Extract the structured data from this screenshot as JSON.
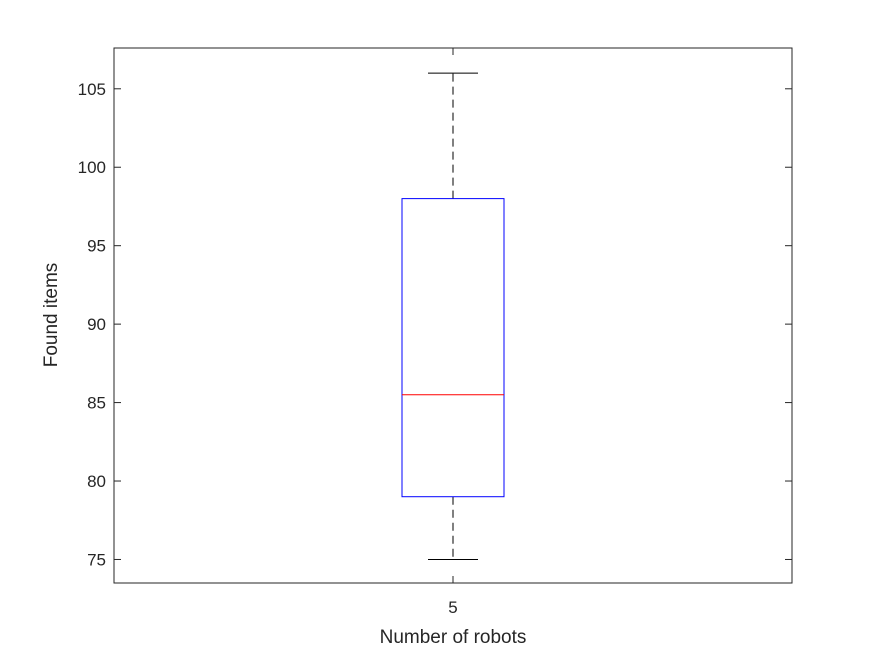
{
  "chart_data": {
    "type": "box",
    "xlabel": "Number of robots",
    "ylabel": "Found items",
    "ylim": [
      73.5,
      107.6
    ],
    "yticks": [
      75,
      80,
      85,
      90,
      95,
      100,
      105
    ],
    "categories": [
      "5"
    ],
    "boxes": [
      {
        "category": "5",
        "whisker_low": 75,
        "q1": 79,
        "median": 85.5,
        "q3": 98,
        "whisker_high": 106
      }
    ],
    "grid": false
  },
  "colors": {
    "box": "#0000ff",
    "median": "#ff0000",
    "whisker": "#000000",
    "axis": "#262626"
  }
}
